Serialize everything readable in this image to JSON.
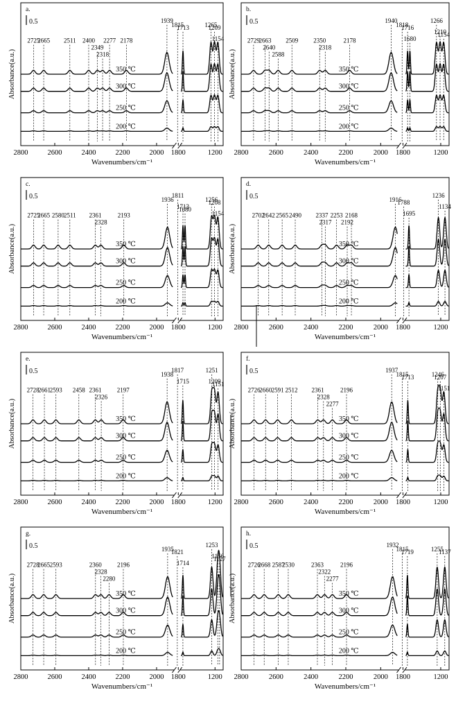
{
  "chart_data": [
    {
      "id": "a",
      "type": "line",
      "panel_label": "a.",
      "scale_label": "0.5",
      "xlabel": "Wavenumbers/cm⁻¹",
      "ylabel": "Absorbance(a.u.)",
      "x_ticks": [
        "2800",
        "2600",
        "2400",
        "2200",
        "2000",
        "1800",
        "1200"
      ],
      "temperatures": [
        "350 ℃",
        "300 ℃",
        "250 ℃",
        "200 ℃"
      ],
      "peaks": [
        "2725",
        "2665",
        "2511",
        "2400",
        "2349",
        "2318",
        "2277",
        "2178",
        "1939",
        "1815",
        "1713",
        "1265",
        "1209",
        "1154"
      ]
    },
    {
      "id": "b",
      "type": "line",
      "panel_label": "b.",
      "scale_label": "0.5",
      "xlabel": "Wavenumbers/cm⁻¹",
      "ylabel": "Absorbance(a.u.)",
      "x_ticks": [
        "2800",
        "2600",
        "2400",
        "2200",
        "2000",
        "1800",
        "1200"
      ],
      "temperatures": [
        "350 ℃",
        "300 ℃",
        "250 ℃",
        "200 ℃"
      ],
      "peaks": [
        "2729",
        "2663",
        "2640",
        "2588",
        "2509",
        "2350",
        "2318",
        "2178",
        "1940",
        "1818",
        "1716",
        "1680",
        "1266",
        "1210",
        "1154"
      ]
    },
    {
      "id": "c",
      "type": "line",
      "panel_label": "c.",
      "scale_label": "0.5",
      "xlabel": "Wavenumbers/cm⁻¹",
      "ylabel": "Absorbance(a.u.)",
      "x_ticks": [
        "2800",
        "2600",
        "2400",
        "2200",
        "2000",
        "1800",
        "1200"
      ],
      "temperatures": [
        "350 ℃",
        "300 ℃",
        "250 ℃",
        "200 ℃"
      ],
      "peaks": [
        "2725",
        "2665",
        "2580",
        "2511",
        "2361",
        "2328",
        "2193",
        "1936",
        "1811",
        "1713",
        "1680",
        "1256",
        "1208",
        "1154"
      ]
    },
    {
      "id": "d",
      "type": "line",
      "panel_label": "d.",
      "scale_label": "0.5",
      "xlabel": "Wavenumbers/cm⁻¹",
      "ylabel": "Absorbance(a.u.)",
      "x_ticks": [
        "2800",
        "2600",
        "2400",
        "2200",
        "2000",
        "1800",
        "1200"
      ],
      "temperatures": [
        "350 ℃",
        "300 ℃",
        "250 ℃",
        "200 ℃"
      ],
      "peaks": [
        "2702",
        "2642",
        "2565",
        "2490",
        "2337",
        "2317",
        "2253",
        "2168",
        "2192",
        "1916",
        "1788",
        "1695",
        "1236",
        "1134"
      ]
    },
    {
      "id": "e",
      "type": "line",
      "panel_label": "e.",
      "scale_label": "0.5",
      "xlabel": "Wavenumbers/cm⁻¹",
      "ylabel": "Absorbance(a.u.)",
      "x_ticks": [
        "2800",
        "2600",
        "2400",
        "2200",
        "2000",
        "1800",
        "1200"
      ],
      "temperatures": [
        "350 ℃",
        "300 ℃",
        "250 ℃",
        "200 ℃"
      ],
      "peaks": [
        "2728",
        "2661",
        "2593",
        "2458",
        "2361",
        "2326",
        "2197",
        "1938",
        "1817",
        "1715",
        "1251",
        "1209",
        "1151"
      ]
    },
    {
      "id": "f",
      "type": "line",
      "panel_label": "f.",
      "scale_label": "0.5",
      "xlabel": "Wavenumbers/cm⁻¹",
      "ylabel": "Absorbance(a.u.)",
      "x_ticks": [
        "2800",
        "2600",
        "2400",
        "2200",
        "2000",
        "1800",
        "1200"
      ],
      "temperatures": [
        "350 ℃",
        "300 ℃",
        "250 ℃",
        "200 ℃"
      ],
      "peaks": [
        "2726",
        "2660",
        "2591",
        "2512",
        "2361",
        "2328",
        "2277",
        "2196",
        "1937",
        "1815",
        "1713",
        "1246",
        "1207",
        "1151"
      ]
    },
    {
      "id": "g",
      "type": "line",
      "panel_label": "g.",
      "scale_label": "0.5",
      "xlabel": "Wavenumbers/cm⁻¹",
      "ylabel": "Absorbance(a.u.)",
      "x_ticks": [
        "2800",
        "2600",
        "2400",
        "2200",
        "2000",
        "1800",
        "1200"
      ],
      "temperatures": [
        "350 ℃",
        "300 ℃",
        "250 ℃",
        "200 ℃"
      ],
      "peaks": [
        "2728",
        "2665",
        "2593",
        "2360",
        "2328",
        "2280",
        "2196",
        "1935",
        "1821",
        "1714",
        "1253",
        "1156",
        "1127"
      ]
    },
    {
      "id": "h",
      "type": "line",
      "panel_label": "h.",
      "scale_label": "0.5",
      "xlabel": "Wavenumbers/cm⁻¹",
      "ylabel": "Absorbance(a.u.)",
      "x_ticks": [
        "2800",
        "2600",
        "2400",
        "2200",
        "2000",
        "1800",
        "1200"
      ],
      "temperatures": [
        "350 ℃",
        "300 ℃",
        "250 ℃",
        "200 ℃"
      ],
      "peaks": [
        "2726",
        "2668",
        "2587",
        "2530",
        "2363",
        "2322",
        "2277",
        "2196",
        "1932",
        "1815",
        "1719",
        "1255",
        "1137"
      ]
    }
  ]
}
